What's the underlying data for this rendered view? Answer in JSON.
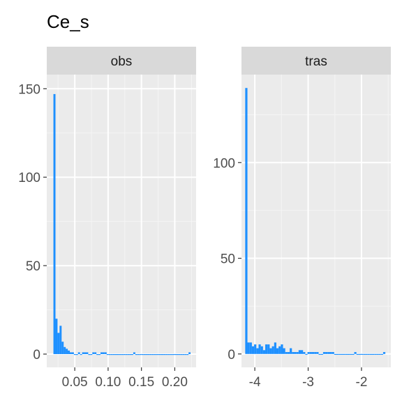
{
  "chart_data": {
    "type": "histogram",
    "title": "Ce_s",
    "grid": true,
    "bar_color": "#1E90FF",
    "panel_bg": "#EBEBEB",
    "strip_bg": "#D9D9D9",
    "panels": [
      {
        "strip": "obs",
        "xlim": [
          0.008,
          0.232
        ],
        "ylim": [
          -7.5,
          158
        ],
        "xticks": [
          0.05,
          0.1,
          0.15,
          0.2
        ],
        "xtick_labels": [
          "0.05",
          "0.10",
          "0.15",
          "0.20"
        ],
        "yticks": [
          0,
          50,
          100,
          150
        ],
        "ytick_labels": [
          "0",
          "50",
          "100",
          "150"
        ],
        "bin_start": 0.018,
        "bin_width": 0.00307,
        "counts": [
          147,
          20,
          12,
          16,
          7,
          4,
          3,
          2,
          1,
          1,
          0,
          0,
          1,
          0,
          1,
          1,
          1,
          0,
          0,
          1,
          1,
          0,
          0,
          1,
          1,
          1,
          0,
          0,
          0,
          0,
          0,
          0,
          0,
          0,
          0,
          0,
          0,
          0,
          0,
          1,
          0,
          0,
          0,
          0,
          0,
          0,
          0,
          0,
          0,
          0,
          0,
          0,
          0,
          0,
          0,
          0,
          0,
          0,
          0,
          0,
          0,
          0,
          0,
          0,
          0,
          0,
          1
        ]
      },
      {
        "strip": "tras",
        "xlim": [
          -4.25,
          -1.45
        ],
        "ylim": [
          -7,
          146
        ],
        "xticks": [
          -4,
          -3,
          -2
        ],
        "xtick_labels": [
          "-4",
          "-3",
          "-2"
        ],
        "yticks": [
          0,
          50,
          100
        ],
        "ytick_labels": [
          "0",
          "50",
          "100"
        ],
        "bin_start": -4.18,
        "bin_width": 0.0417,
        "counts": [
          139,
          6,
          6,
          4,
          5,
          3,
          5,
          4,
          2,
          5,
          5,
          3,
          4,
          6,
          3,
          4,
          5,
          3,
          1,
          1,
          3,
          1,
          1,
          1,
          2,
          2,
          1,
          0,
          1,
          1,
          1,
          1,
          1,
          0,
          0,
          1,
          1,
          1,
          1,
          1,
          0,
          0,
          0,
          0,
          0,
          0,
          0,
          0,
          0,
          1,
          0,
          0,
          0,
          0,
          0,
          0,
          0,
          0,
          0,
          0,
          0,
          0,
          1
        ]
      }
    ]
  }
}
